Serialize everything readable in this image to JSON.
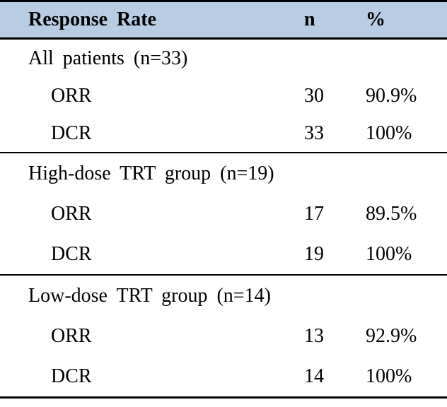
{
  "colors": {
    "header_bg": "#B8CCE4",
    "rule": "#000000",
    "text": "#000000"
  },
  "table": {
    "header": {
      "col1": "Response Rate",
      "col2": "n",
      "col3": "%"
    },
    "sections": [
      {
        "label": "All patients (n=33)",
        "rows": [
          {
            "label": "ORR",
            "n": "30",
            "pct": "90.9%"
          },
          {
            "label": "DCR",
            "n": "33",
            "pct": "100%"
          }
        ]
      },
      {
        "label": "High-dose TRT group (n=19)",
        "rows": [
          {
            "label": "ORR",
            "n": "17",
            "pct": "89.5%"
          },
          {
            "label": "DCR",
            "n": "19",
            "pct": "100%"
          }
        ]
      },
      {
        "label": "Low-dose TRT group (n=14)",
        "rows": [
          {
            "label": "ORR",
            "n": "13",
            "pct": "92.9%"
          },
          {
            "label": "DCR",
            "n": "14",
            "pct": "100%"
          }
        ]
      }
    ]
  },
  "chart_data": {
    "type": "table",
    "title": "Response Rate",
    "columns": [
      "Response Rate",
      "n",
      "%"
    ],
    "rows": [
      [
        "All patients (n=33)",
        "",
        ""
      ],
      [
        "ORR",
        "30",
        "90.9%"
      ],
      [
        "DCR",
        "33",
        "100%"
      ],
      [
        "High-dose TRT group (n=19)",
        "",
        ""
      ],
      [
        "ORR",
        "17",
        "89.5%"
      ],
      [
        "DCR",
        "19",
        "100%"
      ],
      [
        "Low-dose TRT group (n=14)",
        "",
        ""
      ],
      [
        "ORR",
        "13",
        "92.9%"
      ],
      [
        "DCR",
        "14",
        "100%"
      ]
    ]
  }
}
